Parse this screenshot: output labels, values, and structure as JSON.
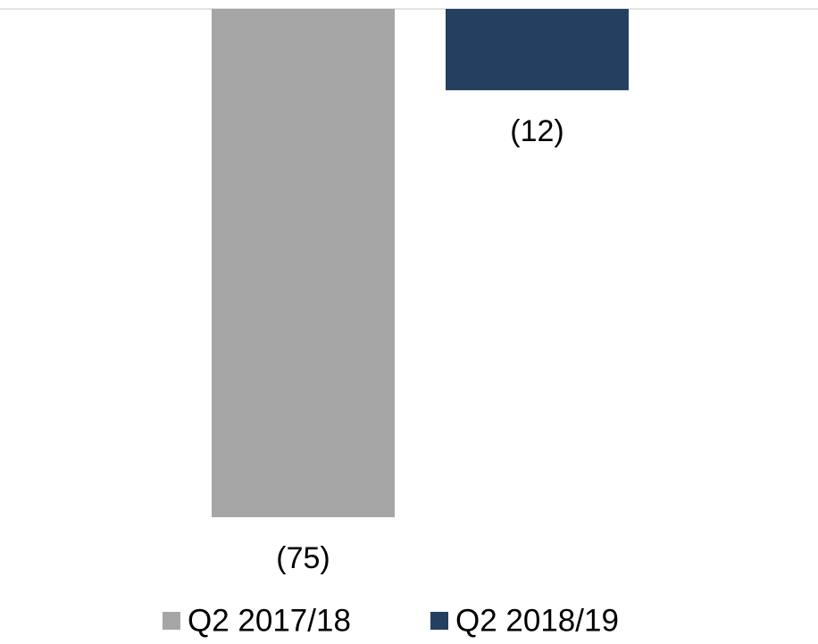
{
  "chart_data": {
    "type": "bar",
    "categories": [
      null
    ],
    "series": [
      {
        "name": "Q2 2017/18",
        "color": "#a6a6a6",
        "values": [
          -75
        ],
        "value_labels": [
          "(75)"
        ]
      },
      {
        "name": "Q2 2018/19",
        "color": "#253f60",
        "values": [
          -12
        ],
        "value_labels": [
          "(12)"
        ]
      }
    ],
    "ylim": [
      -80,
      0
    ],
    "legend": "bottom"
  }
}
